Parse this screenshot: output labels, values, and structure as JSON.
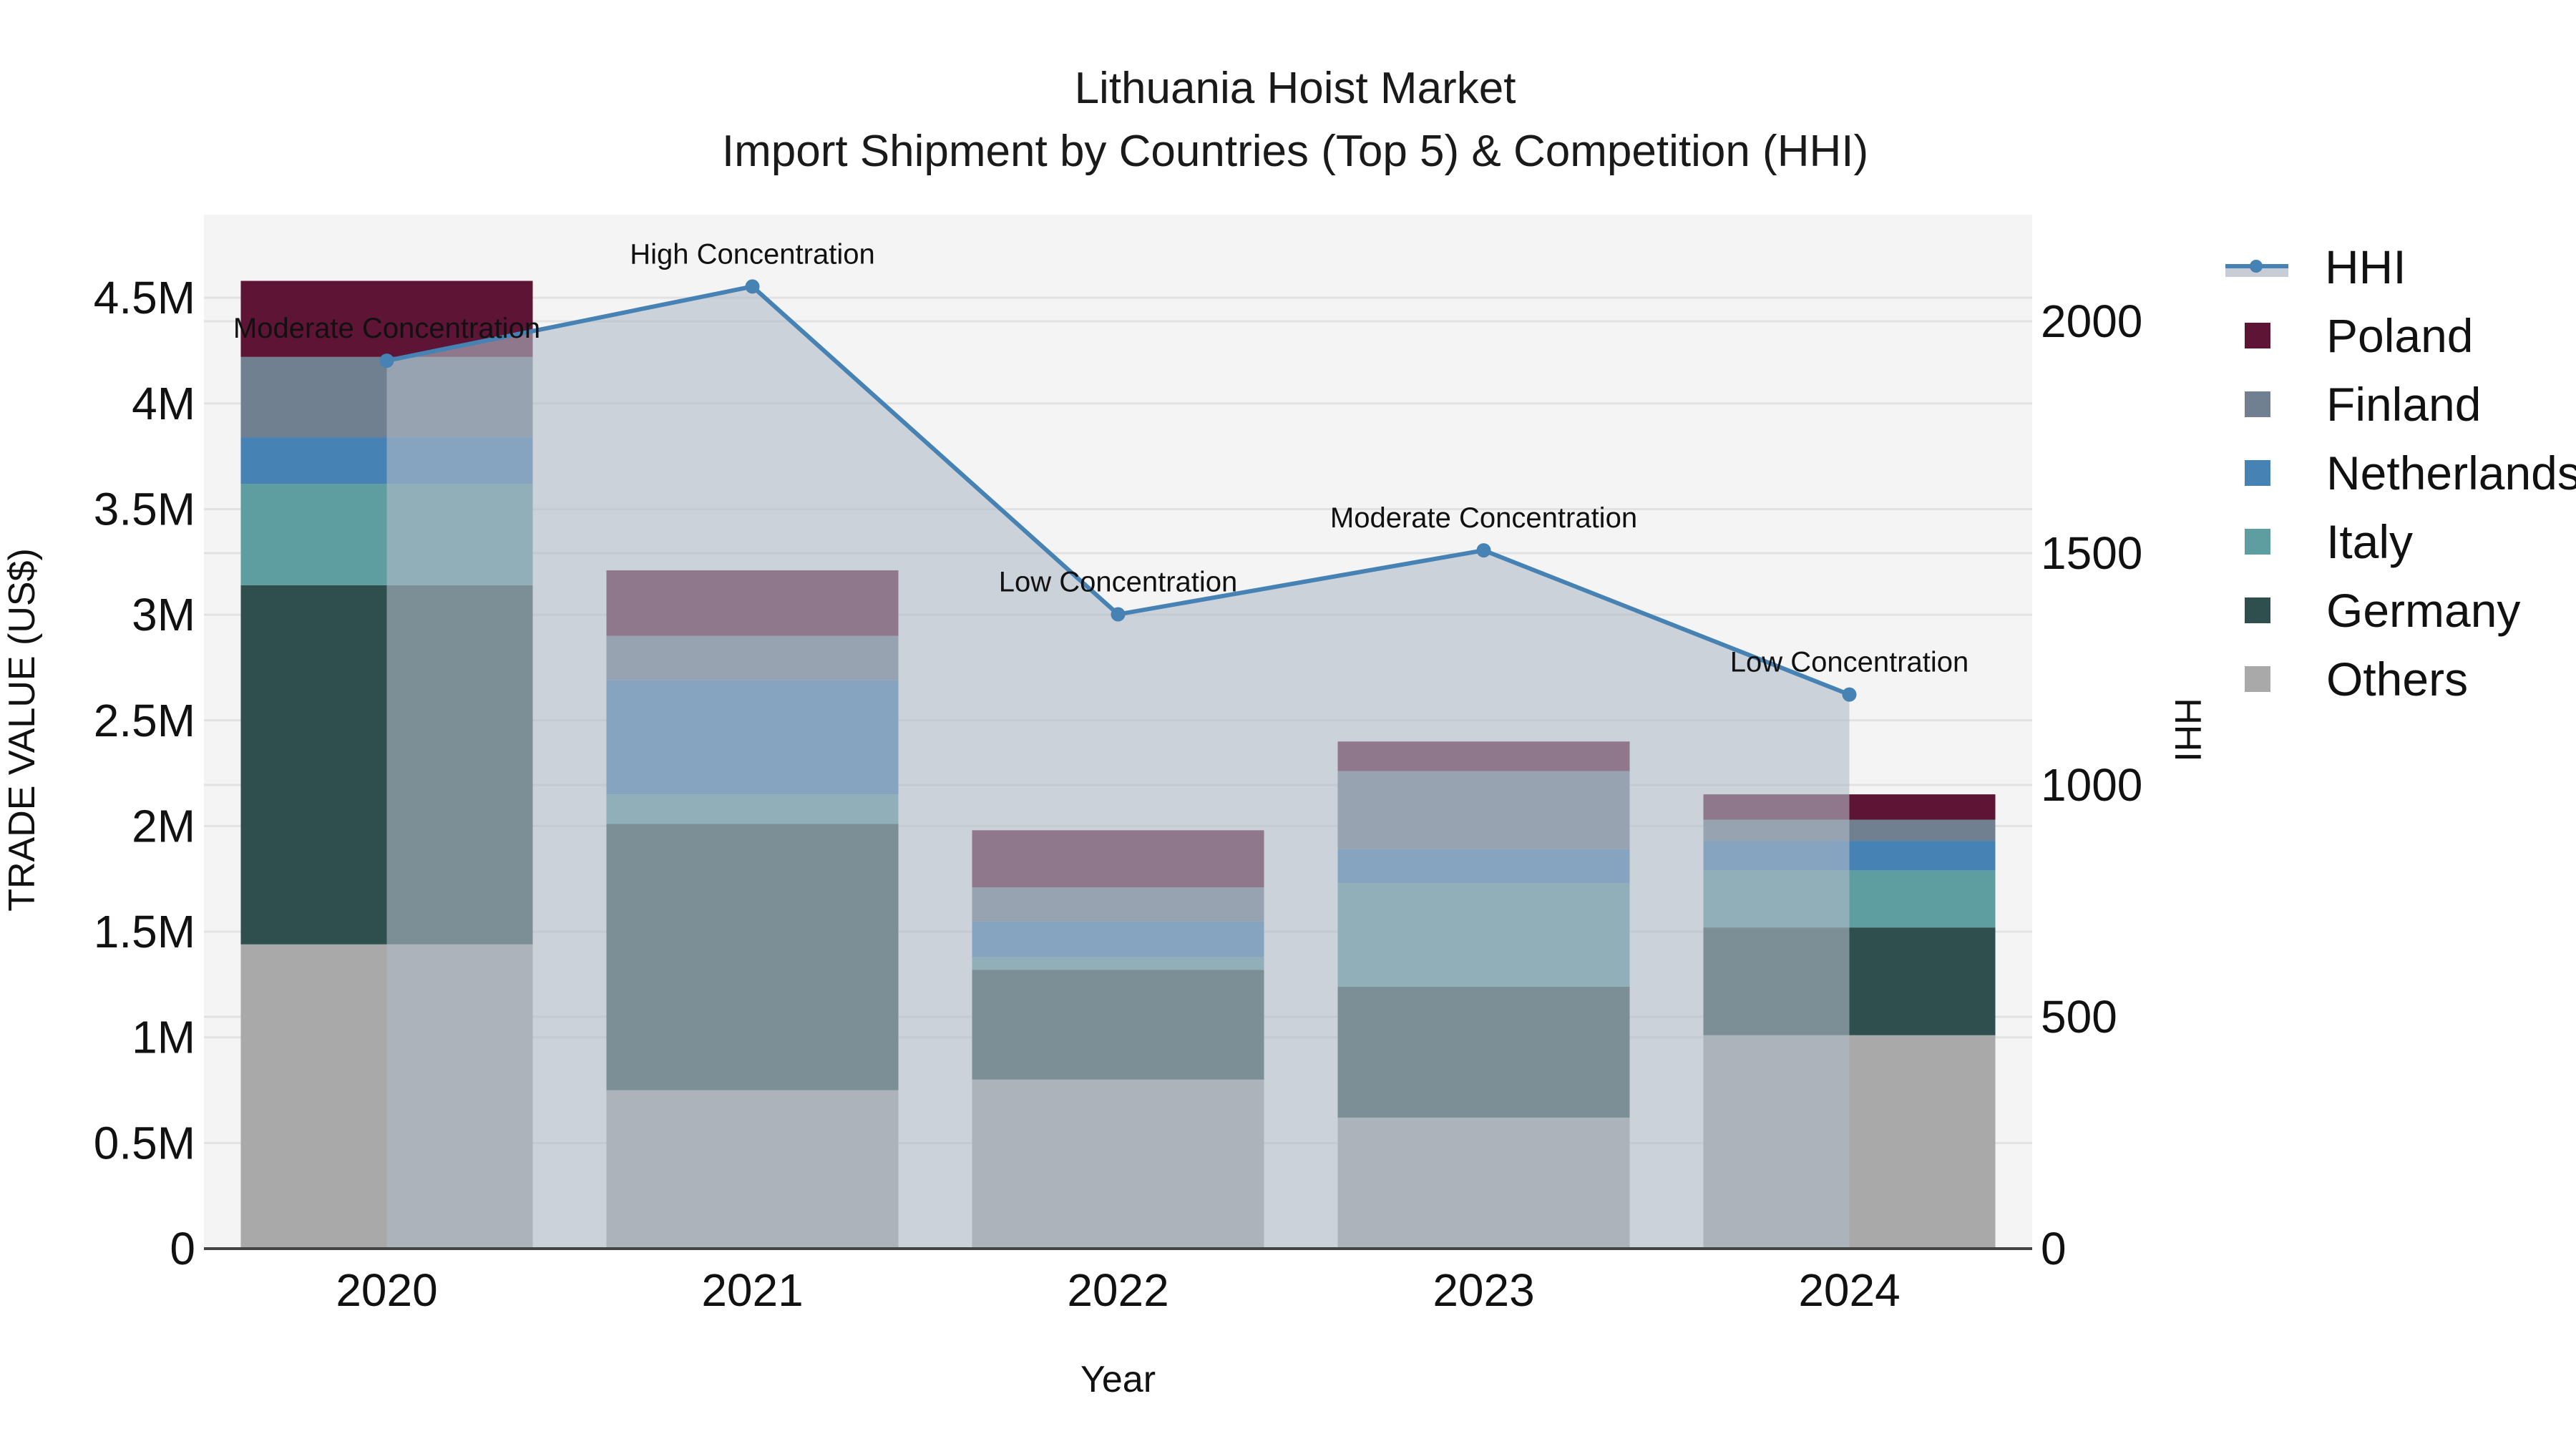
{
  "title": {
    "line1": "Lithuania Hoist Market",
    "line2": "Import Shipment by Countries (Top 5) & Competition (HHI)"
  },
  "axes": {
    "x_label": "Year",
    "y_left_label": "TRADE VALUE (US$)",
    "y_right_label": "HHI",
    "y_left_ticks": [
      "0",
      "0.5M",
      "1M",
      "1.5M",
      "2M",
      "2.5M",
      "3M",
      "3.5M",
      "4M",
      "4.5M"
    ],
    "y_right_ticks": [
      "0",
      "500",
      "1000",
      "1500",
      "2000"
    ]
  },
  "legend": [
    {
      "name": "HHI",
      "type": "line",
      "color": "#4682b4"
    },
    {
      "name": "Poland",
      "type": "bar",
      "color": "#5e1434"
    },
    {
      "name": "Finland",
      "type": "bar",
      "color": "#708090"
    },
    {
      "name": "Netherlands",
      "type": "bar",
      "color": "#4682b4"
    },
    {
      "name": "Italy",
      "type": "bar",
      "color": "#5f9ea0"
    },
    {
      "name": "Germany",
      "type": "bar",
      "color": "#2f4f4f"
    },
    {
      "name": "Others",
      "type": "bar",
      "color": "#a9a9a9"
    }
  ],
  "colors": {
    "plot_bg": "#f4f4f4",
    "grid": "#e2e2e2",
    "hhi_fill": "rgba(176,186,200,0.6)",
    "hhi_line": "#4682b4"
  },
  "chart_data": {
    "type": "bar",
    "title": "Lithuania Hoist Market — Import Shipment by Countries (Top 5) & Competition (HHI)",
    "xlabel": "Year",
    "ylabel": "TRADE VALUE (US$)",
    "y2label": "HHI",
    "categories": [
      "2020",
      "2021",
      "2022",
      "2023",
      "2024"
    ],
    "stacked": true,
    "ylim": [
      0,
      4800000
    ],
    "y2lim": [
      0,
      2200
    ],
    "grid": true,
    "legend_position": "right",
    "series": [
      {
        "name": "Others",
        "values": [
          1440000,
          750000,
          800000,
          620000,
          1010000
        ]
      },
      {
        "name": "Germany",
        "values": [
          1700000,
          1260000,
          520000,
          620000,
          510000
        ]
      },
      {
        "name": "Italy",
        "values": [
          480000,
          140000,
          60000,
          490000,
          270000
        ]
      },
      {
        "name": "Netherlands",
        "values": [
          220000,
          540000,
          170000,
          160000,
          140000
        ]
      },
      {
        "name": "Finland",
        "values": [
          380000,
          210000,
          160000,
          370000,
          100000
        ]
      },
      {
        "name": "Poland",
        "values": [
          360000,
          310000,
          270000,
          140000,
          120000
        ]
      }
    ],
    "totals": [
      4580000,
      3210000,
      1980000,
      2400000,
      2150000
    ],
    "hhi": {
      "name": "HHI",
      "type": "line+area",
      "axis": "right",
      "values": [
        1915,
        2075,
        1368,
        1506,
        1195
      ],
      "annotations": [
        "Moderate Concentration",
        "High Concentration",
        "Low Concentration",
        "Moderate Concentration",
        "Low Concentration"
      ]
    }
  }
}
